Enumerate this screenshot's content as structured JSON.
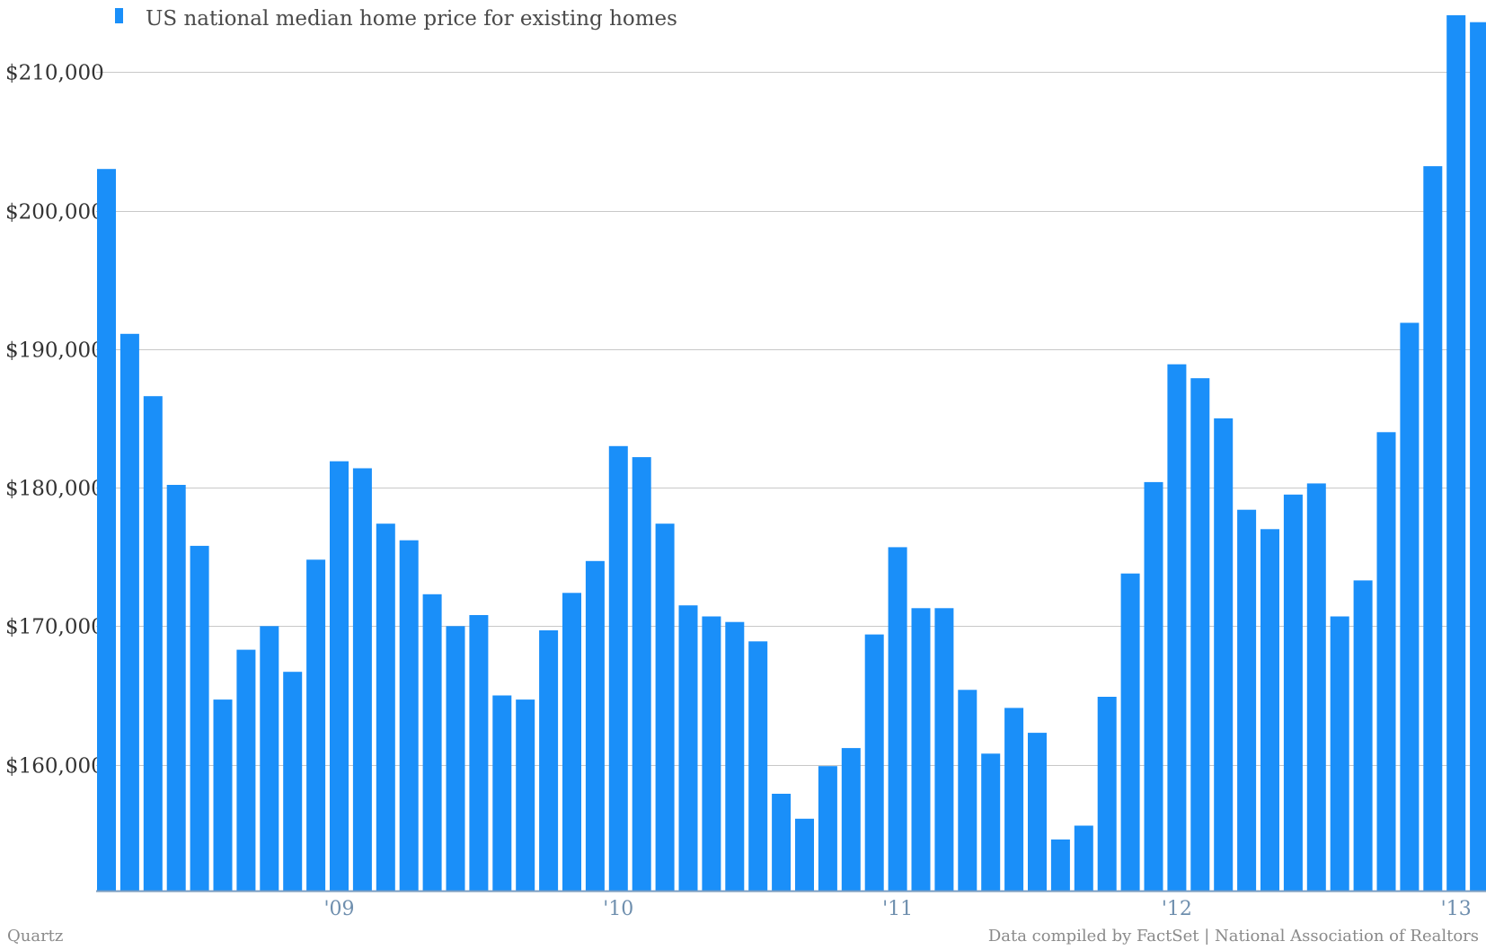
{
  "chart_data": {
    "type": "bar",
    "legend": {
      "label": "US national median home price for existing homes",
      "position": "top-left"
    },
    "series": [
      {
        "name": "US national median home price for existing homes",
        "color": "#1a8ff9",
        "values": [
          203000,
          191100,
          186600,
          180200,
          175800,
          164700,
          168300,
          170000,
          166700,
          174800,
          181900,
          181400,
          177400,
          176200,
          172300,
          170000,
          170800,
          165000,
          164700,
          169700,
          172400,
          174700,
          183000,
          182200,
          177400,
          171500,
          170700,
          170300,
          168900,
          157900,
          156100,
          159900,
          161200,
          169400,
          175700,
          171300,
          171300,
          165400,
          160800,
          164100,
          162300,
          154600,
          155600,
          164900,
          173800,
          180400,
          188900,
          187900,
          185000,
          178400,
          177000,
          179500,
          180300,
          170700,
          173300,
          184000,
          191900,
          203200,
          214100,
          213600
        ]
      }
    ],
    "x_ticks": [
      {
        "label": "'09",
        "index": 10
      },
      {
        "label": "'10",
        "index": 22
      },
      {
        "label": "'11",
        "index": 34
      },
      {
        "label": "'12",
        "index": 46
      },
      {
        "label": "'13",
        "index": 58
      }
    ],
    "y_ticks": [
      {
        "value": 160000,
        "label": "$160,000"
      },
      {
        "value": 170000,
        "label": "$170,000"
      },
      {
        "value": 180000,
        "label": "$180,000"
      },
      {
        "value": 190000,
        "label": "$190,000"
      },
      {
        "value": 200000,
        "label": "$200,000"
      },
      {
        "value": 210000,
        "label": "$210,000"
      }
    ],
    "ylim": [
      150900,
      215200
    ],
    "grid": true,
    "xlabel": "",
    "ylabel": ""
  },
  "footer": {
    "left": "Quartz",
    "right": "Data compiled by FactSet | National Association of Realtors"
  }
}
